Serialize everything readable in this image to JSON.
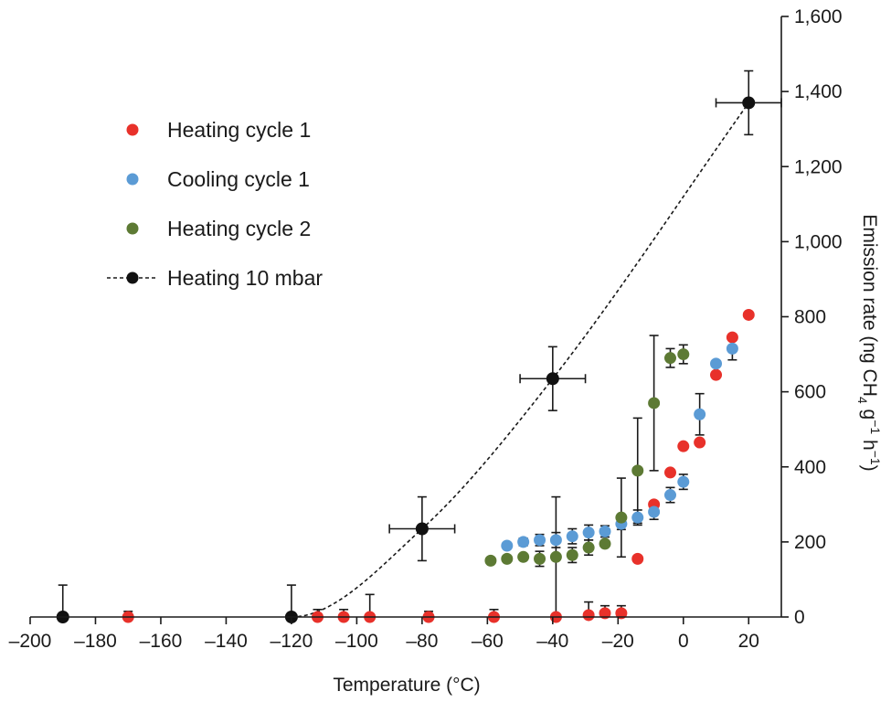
{
  "chart_data": {
    "type": "scatter",
    "xlabel": "Temperature  (°C)",
    "ylabel": {
      "parts": [
        "Emission rate (ng CH",
        "4",
        " g",
        "−1",
        " h",
        "−1",
        ")"
      ]
    },
    "xlim": [
      -200,
      30
    ],
    "ylim": [
      0,
      1600
    ],
    "y_axis_position": "right",
    "x_ticks": [
      -200,
      -180,
      -160,
      -140,
      -120,
      -100,
      -80,
      -60,
      -40,
      -20,
      0,
      20
    ],
    "x_tick_labels": [
      "–200",
      "–180",
      "–160",
      "–140",
      "–120",
      "–100",
      "–80",
      "–60",
      "–40",
      "–20",
      "0",
      "20"
    ],
    "y_ticks": [
      0,
      200,
      400,
      600,
      800,
      1000,
      1200,
      1400,
      1600
    ],
    "y_tick_labels": [
      "0",
      "200",
      "400",
      "600",
      "800",
      "1,000",
      "1,200",
      "1,400",
      "1,600"
    ],
    "grid": false,
    "legend_position": "top-left",
    "series": [
      {
        "name": "Heating cycle 1",
        "color": "#e8312a",
        "marker": "circle",
        "line": "none",
        "points": [
          {
            "x": -170,
            "y": 0,
            "yerr": 15
          },
          {
            "x": -112,
            "y": 0,
            "yerr": 20
          },
          {
            "x": -104,
            "y": 0,
            "yerr": 20
          },
          {
            "x": -96,
            "y": 0,
            "yerr": 60
          },
          {
            "x": -78,
            "y": 0,
            "yerr": 15
          },
          {
            "x": -58,
            "y": 0,
            "yerr": 20
          },
          {
            "x": -39,
            "y": 0,
            "yerr": 0
          },
          {
            "x": -29,
            "y": 5,
            "yerr": 35
          },
          {
            "x": -24,
            "y": 10,
            "yerr": 20
          },
          {
            "x": -19,
            "y": 10,
            "yerr": 20
          },
          {
            "x": -14,
            "y": 155,
            "yerr": 0
          },
          {
            "x": -9,
            "y": 300,
            "yerr": 0
          },
          {
            "x": -4,
            "y": 385,
            "yerr": 0
          },
          {
            "x": 0,
            "y": 455,
            "yerr": 0
          },
          {
            "x": 5,
            "y": 465,
            "yerr": 0
          },
          {
            "x": 10,
            "y": 645,
            "yerr": 0
          },
          {
            "x": 15,
            "y": 745,
            "yerr": 0
          },
          {
            "x": 20,
            "y": 805,
            "yerr": 0
          }
        ]
      },
      {
        "name": "Cooling cycle 1",
        "color": "#5b9bd5",
        "marker": "circle",
        "line": "none",
        "points": [
          {
            "x": -54,
            "y": 190,
            "yerr": 0
          },
          {
            "x": -49,
            "y": 200,
            "yerr": 10
          },
          {
            "x": -44,
            "y": 205,
            "yerr": 15
          },
          {
            "x": -39,
            "y": 205,
            "yerr": 20
          },
          {
            "x": -34,
            "y": 215,
            "yerr": 20
          },
          {
            "x": -29,
            "y": 225,
            "yerr": 20
          },
          {
            "x": -24,
            "y": 228,
            "yerr": 15
          },
          {
            "x": -19,
            "y": 248,
            "yerr": 15
          },
          {
            "x": -14,
            "y": 265,
            "yerr": 20
          },
          {
            "x": -9,
            "y": 280,
            "yerr": 20
          },
          {
            "x": -4,
            "y": 325,
            "yerr": 20
          },
          {
            "x": 0,
            "y": 360,
            "yerr": 20
          },
          {
            "x": 5,
            "y": 540,
            "yerr": 55
          },
          {
            "x": 10,
            "y": 675,
            "yerr": 0
          },
          {
            "x": 15,
            "y": 715,
            "yerr": 30
          }
        ]
      },
      {
        "name": "Heating cycle 2",
        "color": "#5d7a34",
        "marker": "circle",
        "line": "none",
        "points": [
          {
            "x": -59,
            "y": 150,
            "yerr": 0
          },
          {
            "x": -54,
            "y": 155,
            "yerr": 0
          },
          {
            "x": -49,
            "y": 160,
            "yerr": 0
          },
          {
            "x": -44,
            "y": 155,
            "yerr": 20
          },
          {
            "x": -39,
            "y": 160,
            "yerr": 160
          },
          {
            "x": -34,
            "y": 165,
            "yerr": 20
          },
          {
            "x": -29,
            "y": 185,
            "yerr": 20
          },
          {
            "x": -24,
            "y": 195,
            "yerr": 0
          },
          {
            "x": -19,
            "y": 265,
            "yerr": 105
          },
          {
            "x": -14,
            "y": 390,
            "yerr": 140
          },
          {
            "x": -9,
            "y": 570,
            "yerr": 180
          },
          {
            "x": -4,
            "y": 690,
            "yerr": 25
          },
          {
            "x": 0,
            "y": 700,
            "yerr": 25
          }
        ]
      },
      {
        "name": "Heating 10 mbar",
        "color": "#111111",
        "marker": "circle",
        "line": "dashed",
        "points": [
          {
            "x": -190,
            "y": 0,
            "yerr": 85,
            "xerr": 0
          },
          {
            "x": -120,
            "y": 0,
            "yerr": 85,
            "xerr": 0
          },
          {
            "x": -80,
            "y": 235,
            "yerr": 85,
            "xerr": 10
          },
          {
            "x": -40,
            "y": 635,
            "yerr": 85,
            "xerr": 10
          },
          {
            "x": 20,
            "y": 1370,
            "yerr": 85,
            "xerr": 10
          }
        ]
      }
    ]
  }
}
